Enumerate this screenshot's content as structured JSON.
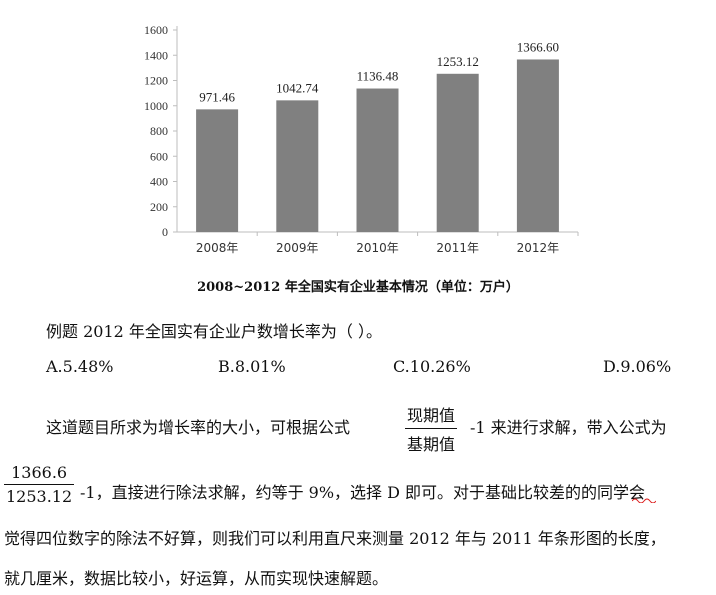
{
  "chart_data": {
    "type": "bar",
    "categories": [
      "2008年",
      "2009年",
      "2010年",
      "2011年",
      "2012年"
    ],
    "values": [
      971.46,
      1042.74,
      1136.48,
      1253.12,
      1366.6
    ],
    "value_labels": [
      "971.46",
      "1042.74",
      "1136.48",
      "1253.12",
      "1366.60"
    ],
    "yticks": [
      "0",
      "200",
      "400",
      "600",
      "800",
      "1000",
      "1200",
      "1400",
      "1600"
    ],
    "ylim": [
      0,
      1600
    ],
    "grid": false,
    "bar_color": "#808080"
  },
  "caption": "2008~2012 年全国实有企业基本情况（单位：万户）",
  "question": "例题  2012 年全国实有企业户数增长率为（  ）。",
  "options": {
    "a": "A.5.48%",
    "b": "B.8.01%",
    "c": "C.10.26%",
    "d": "D.9.06%"
  },
  "para1": {
    "before": "这道题目所求为增长率的大小，可根据公式",
    "frac_num": "现期值",
    "frac_den": "基期值",
    "after": "-1 来进行求解，带入公式为"
  },
  "para2": {
    "frac_num": "1366.6",
    "frac_den": "1253.12",
    "after": "-1，直接进行除法求解，约等于 9%，选择 D 即可。对于基础比较差的的同学会"
  },
  "line3": "觉得四位数字的除法不好算，则我们可以利用直尺来测量 2012 年与 2011 年条形图的长度，",
  "line4": "就几厘米，数据比较小，好运算，从而实现快速解题。"
}
